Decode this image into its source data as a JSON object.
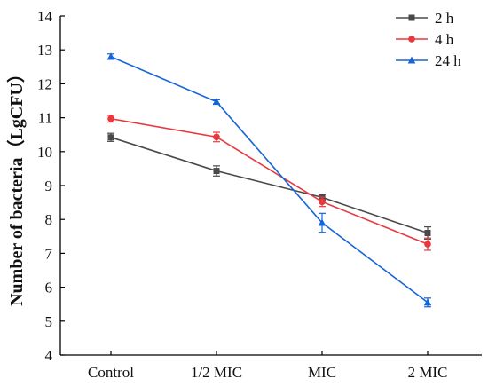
{
  "chart_data": {
    "type": "line",
    "title": "",
    "xlabel": "",
    "ylabel": "Number of bacteria（LgCFU）",
    "categories": [
      "Control",
      "1/2 MIC",
      "MIC",
      "2 MIC"
    ],
    "ylim": [
      4,
      14
    ],
    "yticks": [
      "4",
      "5",
      "6",
      "7",
      "8",
      "9",
      "10",
      "11",
      "12",
      "13",
      "14"
    ],
    "grid": false,
    "legend_position": "top-right",
    "series": [
      {
        "name": "2 h",
        "color": "#4a4a4a",
        "marker": "square",
        "values": [
          10.42,
          9.43,
          8.65,
          7.6
        ],
        "errors": [
          0.12,
          0.15,
          0.08,
          0.18
        ]
      },
      {
        "name": "4 h",
        "color": "#e8383d",
        "marker": "circle",
        "values": [
          10.97,
          10.43,
          8.52,
          7.27
        ],
        "errors": [
          0.1,
          0.14,
          0.14,
          0.18
        ]
      },
      {
        "name": "24 h",
        "color": "#1565d8",
        "marker": "triangle",
        "values": [
          12.8,
          11.47,
          7.9,
          5.55
        ],
        "errors": [
          0.08,
          0.06,
          0.28,
          0.13
        ]
      }
    ]
  }
}
